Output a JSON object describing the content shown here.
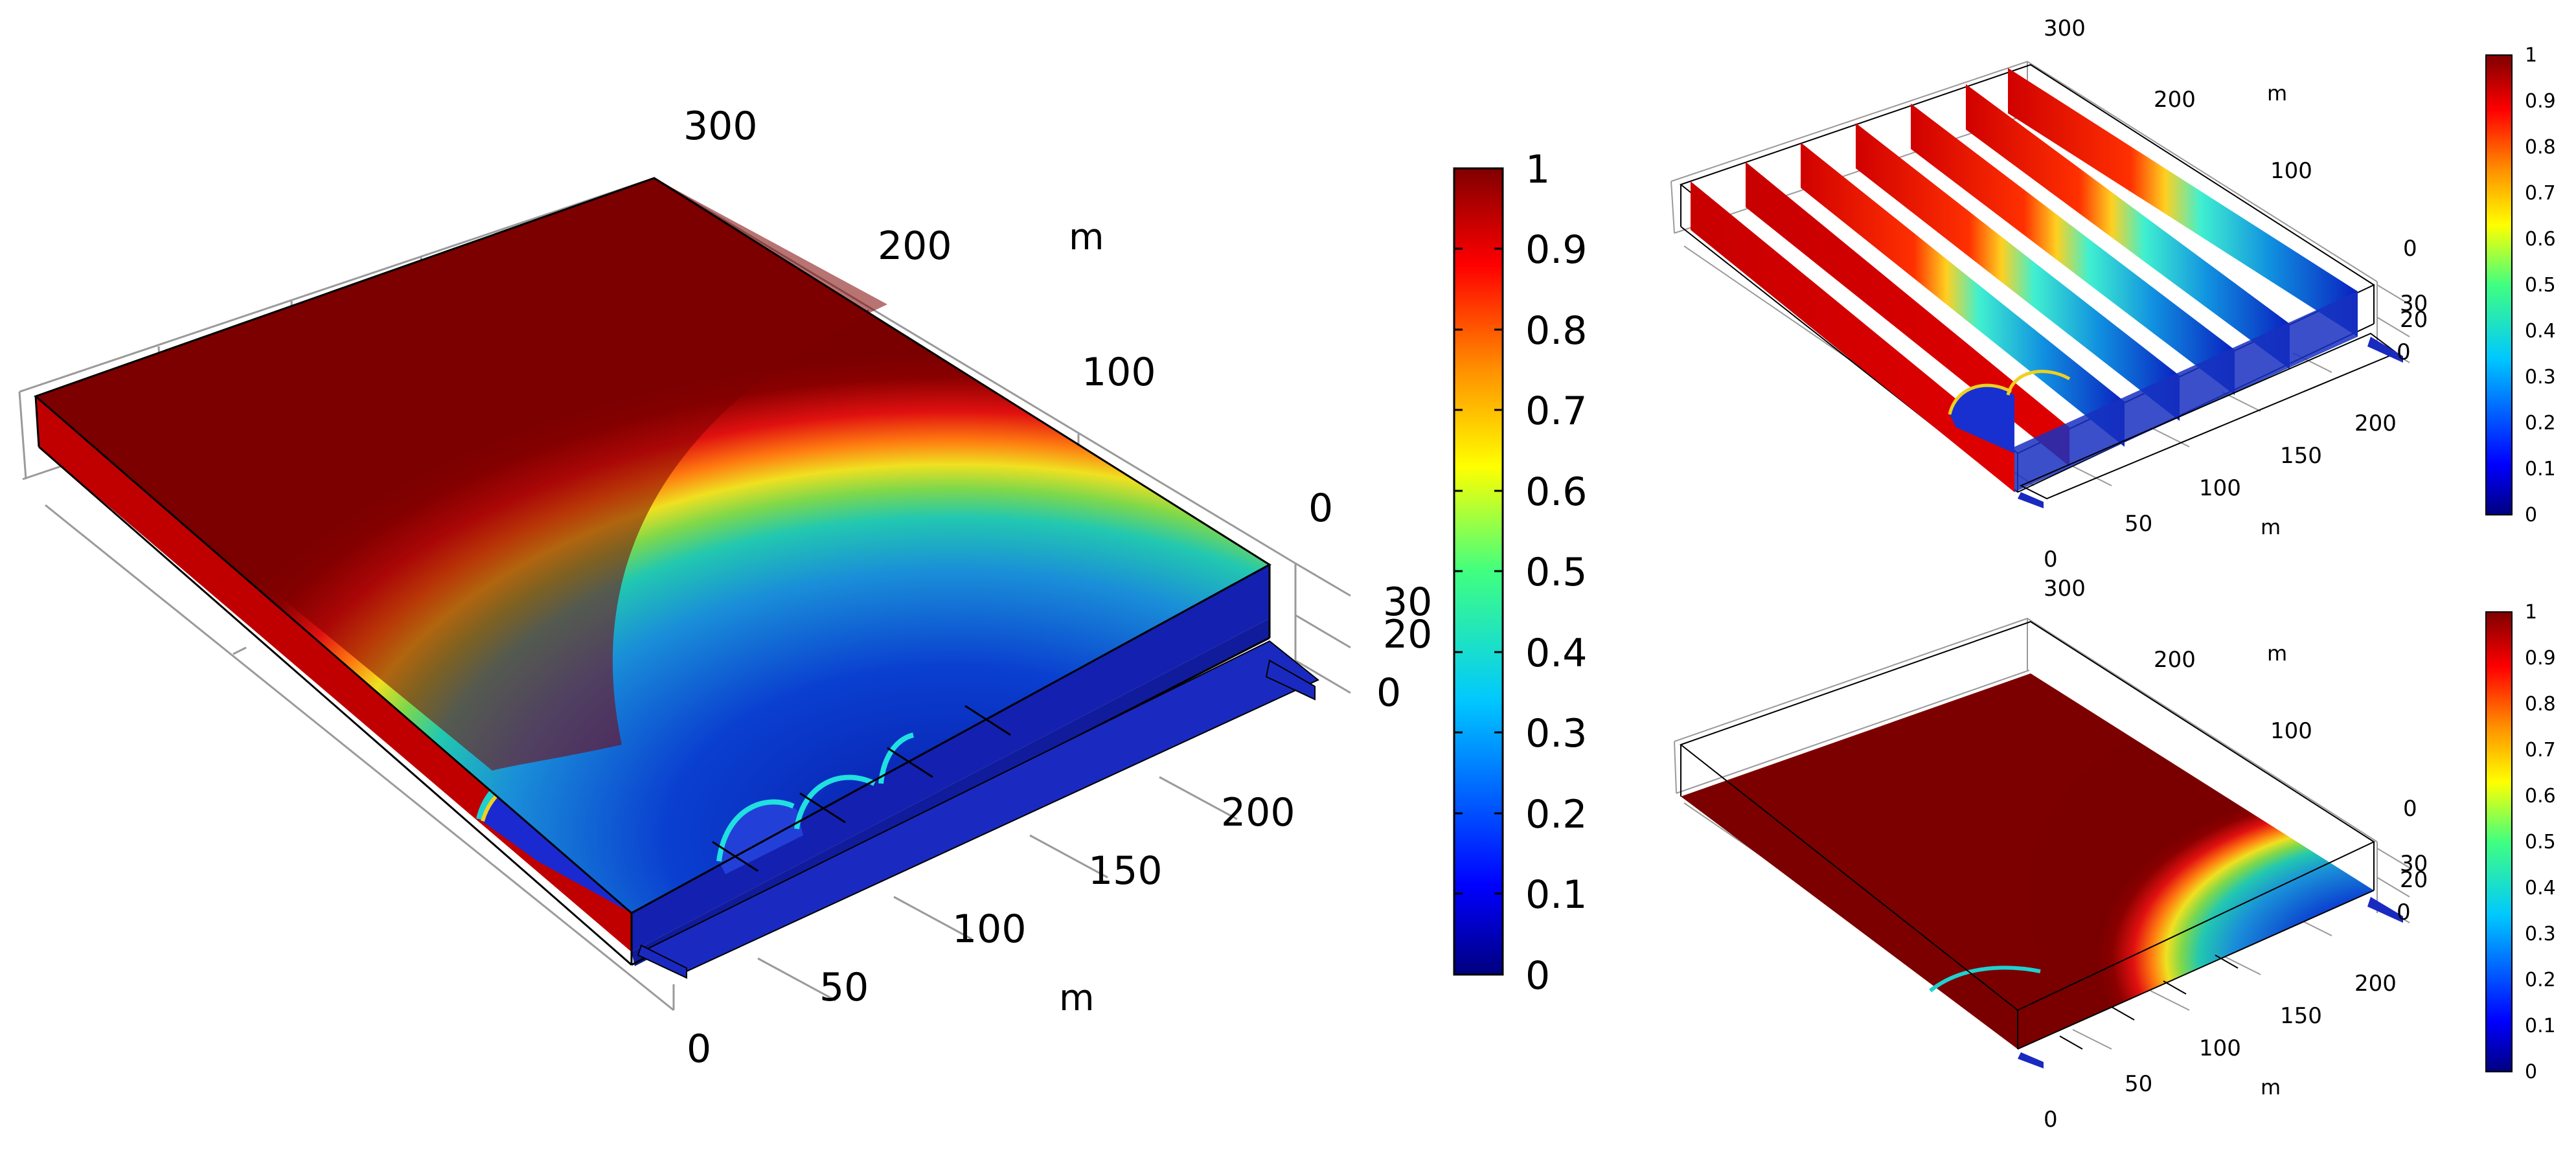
{
  "colorscale": {
    "stops": [
      "#00007f",
      "#0000ff",
      "#0080ff",
      "#00ffff",
      "#80ff80",
      "#ffff00",
      "#ff8000",
      "#ff0000",
      "#800000"
    ]
  },
  "main_plot": {
    "axis_ticks_y": [
      "0",
      "100",
      "200",
      "300"
    ],
    "axis_unit_y": "m",
    "axis_ticks_x": [
      "0",
      "50",
      "100",
      "150",
      "200"
    ],
    "axis_unit_x": "m",
    "axis_ticks_z": [
      "0",
      "20",
      "30"
    ],
    "colorbar_ticks": [
      "0",
      "0.1",
      "0.2",
      "0.3",
      "0.4",
      "0.5",
      "0.6",
      "0.7",
      "0.8",
      "0.9",
      "1"
    ]
  },
  "top_right_plot": {
    "axis_ticks_y": [
      "0",
      "100",
      "200",
      "300"
    ],
    "axis_unit_y": "m",
    "axis_ticks_x": [
      "0",
      "50",
      "100",
      "150",
      "200"
    ],
    "axis_unit_x": "m",
    "axis_ticks_z": [
      "0",
      "20",
      "30"
    ],
    "colorbar_ticks": [
      "0",
      "0.1",
      "0.2",
      "0.3",
      "0.4",
      "0.5",
      "0.6",
      "0.7",
      "0.8",
      "0.9",
      "1"
    ]
  },
  "bottom_right_plot": {
    "axis_ticks_y": [
      "0",
      "100",
      "200",
      "300"
    ],
    "axis_unit_y": "m",
    "axis_ticks_x": [
      "0",
      "50",
      "100",
      "150",
      "200"
    ],
    "axis_unit_x": "m",
    "axis_ticks_z": [
      "0",
      "20",
      "30"
    ],
    "colorbar_ticks": [
      "0",
      "0.1",
      "0.2",
      "0.3",
      "0.4",
      "0.5",
      "0.6",
      "0.7",
      "0.8",
      "0.9",
      "1"
    ]
  }
}
